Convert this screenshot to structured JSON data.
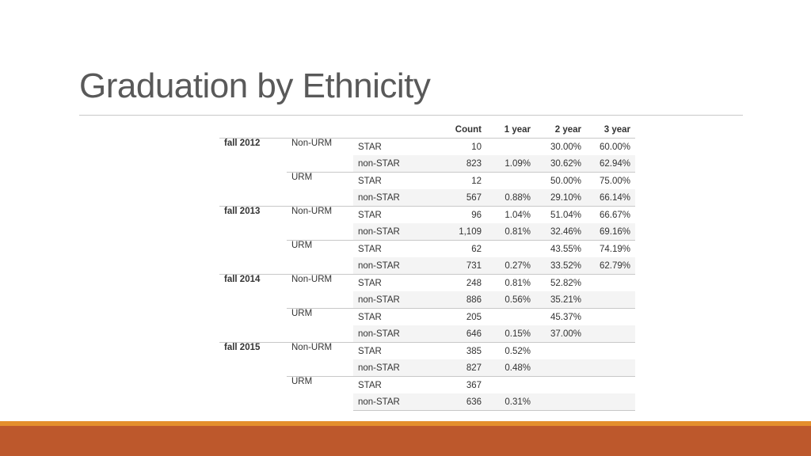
{
  "slide": {
    "title": "Graduation by Ethnicity"
  },
  "table": {
    "columns": [
      "",
      "",
      "",
      "Count",
      "1 year",
      "2 year",
      "3 year"
    ],
    "terms": [
      {
        "term": "fall 2012",
        "groups": [
          {
            "group": "Non-URM",
            "rows": [
              {
                "program": "STAR",
                "count": "10",
                "y1": "",
                "y2": "30.00%",
                "y3": "60.00%"
              },
              {
                "program": "non-STAR",
                "count": "823",
                "y1": "1.09%",
                "y2": "30.62%",
                "y3": "62.94%"
              }
            ]
          },
          {
            "group": "URM",
            "rows": [
              {
                "program": "STAR",
                "count": "12",
                "y1": "",
                "y2": "50.00%",
                "y3": "75.00%"
              },
              {
                "program": "non-STAR",
                "count": "567",
                "y1": "0.88%",
                "y2": "29.10%",
                "y3": "66.14%"
              }
            ]
          }
        ]
      },
      {
        "term": "fall 2013",
        "groups": [
          {
            "group": "Non-URM",
            "rows": [
              {
                "program": "STAR",
                "count": "96",
                "y1": "1.04%",
                "y2": "51.04%",
                "y3": "66.67%"
              },
              {
                "program": "non-STAR",
                "count": "1,109",
                "y1": "0.81%",
                "y2": "32.46%",
                "y3": "69.16%"
              }
            ]
          },
          {
            "group": "URM",
            "rows": [
              {
                "program": "STAR",
                "count": "62",
                "y1": "",
                "y2": "43.55%",
                "y3": "74.19%"
              },
              {
                "program": "non-STAR",
                "count": "731",
                "y1": "0.27%",
                "y2": "33.52%",
                "y3": "62.79%"
              }
            ]
          }
        ]
      },
      {
        "term": "fall 2014",
        "groups": [
          {
            "group": "Non-URM",
            "rows": [
              {
                "program": "STAR",
                "count": "248",
                "y1": "0.81%",
                "y2": "52.82%",
                "y3": ""
              },
              {
                "program": "non-STAR",
                "count": "886",
                "y1": "0.56%",
                "y2": "35.21%",
                "y3": ""
              }
            ]
          },
          {
            "group": "URM",
            "rows": [
              {
                "program": "STAR",
                "count": "205",
                "y1": "",
                "y2": "45.37%",
                "y3": ""
              },
              {
                "program": "non-STAR",
                "count": "646",
                "y1": "0.15%",
                "y2": "37.00%",
                "y3": ""
              }
            ]
          }
        ]
      },
      {
        "term": "fall 2015",
        "groups": [
          {
            "group": "Non-URM",
            "rows": [
              {
                "program": "STAR",
                "count": "385",
                "y1": "0.52%",
                "y2": "",
                "y3": ""
              },
              {
                "program": "non-STAR",
                "count": "827",
                "y1": "0.48%",
                "y2": "",
                "y3": ""
              }
            ]
          },
          {
            "group": "URM",
            "rows": [
              {
                "program": "STAR",
                "count": "367",
                "y1": "",
                "y2": "",
                "y3": ""
              },
              {
                "program": "non-STAR",
                "count": "636",
                "y1": "0.31%",
                "y2": "",
                "y3": ""
              }
            ]
          }
        ]
      }
    ]
  },
  "theme": {
    "accent_orange": "#e48e2c",
    "accent_rust": "#bd582c",
    "rule_gray": "#c8c8c8",
    "shade_gray": "#f4f4f4"
  }
}
